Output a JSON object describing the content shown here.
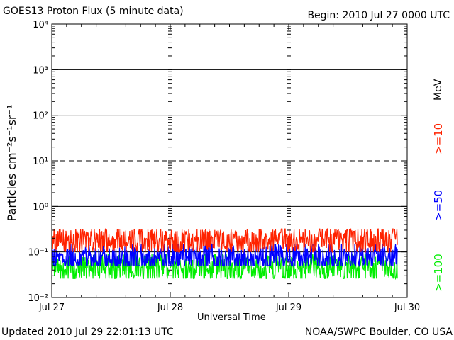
{
  "header": {
    "title": "GOES13 Proton Flux (5 minute data)",
    "begin": "Begin: 2010 Jul 27 0000 UTC"
  },
  "footer": {
    "updated": "Updated 2010 Jul 29 22:01:13 UTC",
    "credit": "NOAA/SWPC Boulder, CO USA"
  },
  "colors": {
    "ge10": "#ff2200",
    "ge50": "#0000ff",
    "ge100": "#00ee00",
    "axis": "#000000"
  },
  "chart_data": {
    "type": "line",
    "title": "GOES13 Proton Flux (5 minute data)",
    "xlabel": "Universal Time",
    "ylabel": "Particles cm⁻²s⁻¹sr⁻¹",
    "y_scale": "log",
    "ylim": [
      0.01,
      10000
    ],
    "y_ticks": [
      {
        "value": 0.01,
        "label": "10⁻²"
      },
      {
        "value": 0.1,
        "label": "10⁻¹"
      },
      {
        "value": 1,
        "label": "10⁰"
      },
      {
        "value": 10,
        "label": "10¹"
      },
      {
        "value": 100,
        "label": "10²"
      },
      {
        "value": 1000,
        "label": "10³"
      },
      {
        "value": 10000,
        "label": "10⁴"
      }
    ],
    "x_ticks": [
      "Jul 27",
      "Jul 28",
      "Jul 29",
      "Jul 30"
    ],
    "xlim": [
      "2010-07-27T00:00",
      "2010-07-30T00:00"
    ],
    "grid": {
      "solid_at": [
        1,
        100,
        1000
      ],
      "dashed_at": [
        10
      ],
      "dotted_days": [
        "Jul 28",
        "Jul 29"
      ]
    },
    "units_label": "MeV",
    "series": [
      {
        "name": ">=10",
        "color": "#ff2200",
        "baseline": 0.16,
        "min": 0.1,
        "max": 0.32,
        "end": "2010-07-29T22:00"
      },
      {
        "name": ">=50",
        "color": "#0000ff",
        "baseline": 0.065,
        "min": 0.05,
        "max": 0.15,
        "end": "2010-07-29T22:00"
      },
      {
        "name": ">=100",
        "color": "#00ee00",
        "baseline": 0.04,
        "min": 0.026,
        "max": 0.09,
        "end": "2010-07-29T22:00"
      }
    ]
  }
}
